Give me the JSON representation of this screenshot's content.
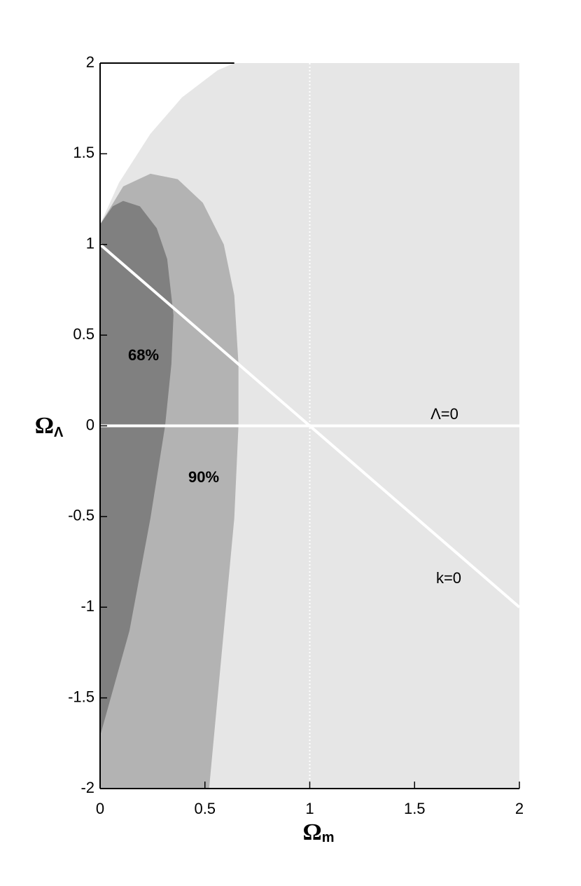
{
  "chart_data": {
    "type": "contour",
    "x_label": {
      "main": "Ω",
      "sub": "m"
    },
    "y_label": {
      "main": "Ω",
      "sub": "Λ"
    },
    "xlim": [
      0,
      2
    ],
    "ylim": [
      -2,
      2
    ],
    "xticks": [
      0,
      0.5,
      1,
      1.5,
      2
    ],
    "yticks": [
      -2,
      -1.5,
      -1,
      -0.5,
      0,
      0.5,
      1,
      1.5,
      2
    ],
    "regions": [
      {
        "color": "#e6e6e6",
        "x": [
          0,
          0.09,
          0.24,
          0.39,
          0.56,
          0.64,
          2,
          2,
          0
        ],
        "y": [
          1.11,
          1.34,
          1.61,
          1.81,
          1.96,
          2,
          2,
          -2,
          -2
        ]
      },
      {
        "name": "90%",
        "color": "#b3b3b3",
        "x": [
          0,
          0.11,
          0.24,
          0.37,
          0.49,
          0.59,
          0.64,
          0.66,
          0.66,
          0.64,
          0.59,
          0.52,
          0
        ],
        "y": [
          1.11,
          1.32,
          1.39,
          1.36,
          1.23,
          1.0,
          0.72,
          0.34,
          0,
          -0.51,
          -1.13,
          -2,
          -2
        ]
      },
      {
        "name": "68%",
        "color": "#808080",
        "x": [
          0,
          0.06,
          0.11,
          0.19,
          0.27,
          0.32,
          0.35,
          0.34,
          0.31,
          0.24,
          0.14,
          0
        ],
        "y": [
          1.11,
          1.21,
          1.24,
          1.21,
          1.09,
          0.92,
          0.61,
          0.34,
          0,
          -0.51,
          -1.13,
          -1.71
        ]
      }
    ],
    "lines": [
      {
        "name": "k=0",
        "color": "#ffffff",
        "x": [
          0,
          2
        ],
        "y": [
          1,
          -1
        ]
      },
      {
        "name": "Λ=0",
        "color": "#ffffff",
        "x": [
          0,
          2
        ],
        "y": [
          0,
          0
        ]
      }
    ],
    "reference_x": 1
  }
}
